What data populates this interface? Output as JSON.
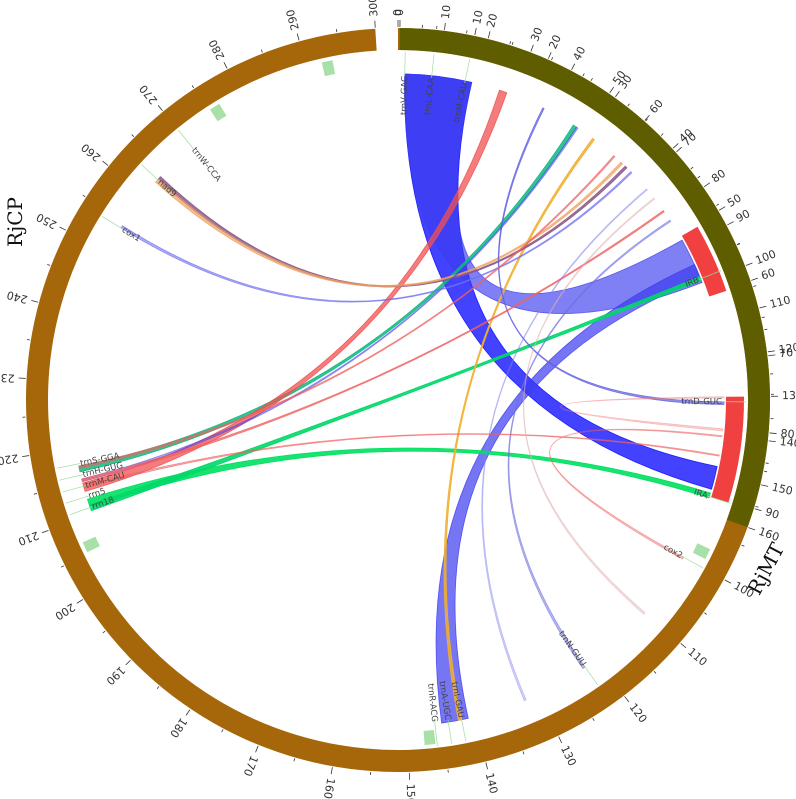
{
  "diagram": {
    "type": "circos",
    "genomes": [
      {
        "id": "RjMT",
        "label": "RjMT",
        "color": "#a5670a",
        "length": 300,
        "tick_step": 10
      },
      {
        "id": "RjCP",
        "label": "RjCP",
        "color": "#5e5e00",
        "length": 160,
        "tick_step": 10
      }
    ],
    "segments": [
      {
        "genome": "RjCP",
        "start": 87,
        "end": 104,
        "color": "#f04040",
        "label": ""
      },
      {
        "genome": "RjCP",
        "start": 130,
        "end": 156,
        "color": "#f04040",
        "label": ""
      }
    ],
    "gene_markers": [
      {
        "genome": "RjMT",
        "pos": 98,
        "color": "#a8e0a8"
      },
      {
        "genome": "RjMT",
        "pos": 147,
        "color": "#a8e0a8"
      },
      {
        "genome": "RjMT",
        "pos": 206,
        "color": "#a8e0a8"
      },
      {
        "genome": "RjMT",
        "pos": 293,
        "color": "#a8e0a8"
      },
      {
        "genome": "RjMT",
        "pos": 276,
        "color": "#a8e0a8"
      }
    ],
    "gene_labels": [
      {
        "text": "trnV-GAC",
        "genome": "RjMT",
        "pos": 1
      },
      {
        "text": "trnL-CAA",
        "genome": "RjMT",
        "pos": 5
      },
      {
        "text": "trnM-CAU",
        "genome": "RjMT",
        "pos": 10
      },
      {
        "text": "trnD-GUC",
        "genome": "RjMT",
        "pos": 76
      },
      {
        "text": "cox2",
        "genome": "RjMT",
        "pos": 100
      },
      {
        "text": "trnN-GUU",
        "genome": "RjMT",
        "pos": 122
      },
      {
        "text": "trnI-GAU",
        "genome": "RjMT",
        "pos": 142
      },
      {
        "text": "trnA-UGC",
        "genome": "RjMT",
        "pos": 144
      },
      {
        "text": "trnR-ACG",
        "genome": "RjMT",
        "pos": 146
      },
      {
        "text": "rrn18",
        "genome": "RjMT",
        "pos": 211
      },
      {
        "text": "rrn5",
        "genome": "RjMT",
        "pos": 212.7
      },
      {
        "text": "trnM-CAU",
        "genome": "RjMT",
        "pos": 214.3
      },
      {
        "text": "trnH-GUG",
        "genome": "RjMT",
        "pos": 216
      },
      {
        "text": "trnS-GGA",
        "genome": "RjMT",
        "pos": 217.7
      },
      {
        "text": "trnW-CCA",
        "genome": "RjMT",
        "pos": 270
      },
      {
        "text": "nad9",
        "genome": "RjMT",
        "pos": 263
      },
      {
        "text": "cox1",
        "genome": "RjMT",
        "pos": 254
      },
      {
        "text": "IRA",
        "genome": "RjCP",
        "pos": 156
      },
      {
        "text": "IRB",
        "genome": "RjCP",
        "pos": 99
      }
    ],
    "links": [
      {
        "a": [
          "RjCP",
          148,
          154
        ],
        "b": [
          "RjMT",
          1,
          11
        ],
        "color": "#1414ff",
        "opacity": 0.8
      },
      {
        "a": [
          "RjCP",
          88,
          100
        ],
        "b": [
          "RjMT",
          1,
          11
        ],
        "color": "#3c3cf0",
        "opacity": 0.65
      },
      {
        "a": [
          "RjCP",
          95,
          99
        ],
        "b": [
          "RjMT",
          141,
          145
        ],
        "color": "#3c3cf0",
        "opacity": 0.7
      },
      {
        "a": [
          "RjCP",
          155,
          156.3
        ],
        "b": [
          "RjMT",
          211,
          212.3
        ],
        "color": "#00e060",
        "opacity": 0.9
      },
      {
        "a": [
          "RjCP",
          98.4,
          99.4
        ],
        "b": [
          "RjMT",
          210.5,
          211.4
        ],
        "color": "#00d868",
        "opacity": 0.9
      },
      {
        "a": [
          "RjCP",
          47,
          48
        ],
        "b": [
          "RjMT",
          216.5,
          217.3
        ],
        "color": "#10b880",
        "opacity": 0.85
      },
      {
        "a": [
          "RjCP",
          26,
          28
        ],
        "b": [
          "RjMT",
          213.5,
          214.8
        ],
        "color": "#f05050",
        "opacity": 0.75
      },
      {
        "a": [
          "RjCP",
          53,
          53.6
        ],
        "b": [
          "RjMT",
          142,
          142.5
        ],
        "color": "#f0b030",
        "opacity": 0.85
      },
      {
        "a": [
          "RjCP",
          64,
          64.6
        ],
        "b": [
          "RjMT",
          263,
          263.6
        ],
        "color": "#8a5a8a",
        "opacity": 0.85
      },
      {
        "a": [
          "RjCP",
          62.5,
          63.1
        ],
        "b": [
          "RjMT",
          262.5,
          263.1
        ],
        "color": "#f0a060",
        "opacity": 0.7
      },
      {
        "a": [
          "RjCP",
          38,
          38.4
        ],
        "b": [
          "RjMT",
          76,
          76.4
        ],
        "color": "#6060e0",
        "opacity": 0.7
      },
      {
        "a": [
          "RjCP",
          82,
          82.4
        ],
        "b": [
          "RjMT",
          122,
          122.4
        ],
        "color": "#7070e0",
        "opacity": 0.5
      },
      {
        "a": [
          "RjCP",
          48,
          48.4
        ],
        "b": [
          "RjMT",
          215,
          215.4
        ],
        "color": "#4040f0",
        "opacity": 0.45
      },
      {
        "a": [
          "RjCP",
          66,
          66.4
        ],
        "b": [
          "RjMT",
          254,
          254.4
        ],
        "color": "#7070f0",
        "opacity": 0.6
      },
      {
        "a": [
          "RjCP",
          79,
          79.4
        ],
        "b": [
          "RjMT",
          215,
          215.4
        ],
        "color": "#f06060",
        "opacity": 0.7
      },
      {
        "a": [
          "RjCP",
          60,
          60.4
        ],
        "b": [
          "RjMT",
          217,
          217.4
        ],
        "color": "#f06060",
        "opacity": 0.6
      },
      {
        "a": [
          "RjCP",
          140,
          140.3
        ],
        "b": [
          "RjMT",
          100,
          100.3
        ],
        "color": "#f06060",
        "opacity": 0.4
      },
      {
        "a": [
          "RjCP",
          145,
          145.3
        ],
        "b": [
          "RjMT",
          214,
          214.3
        ],
        "color": "#f06060",
        "opacity": 0.5
      },
      {
        "a": [
          "RjCP",
          72,
          72.3
        ],
        "b": [
          "RjMT",
          132,
          132.3
        ],
        "color": "#8080f0",
        "opacity": 0.35
      },
      {
        "a": [
          "RjCP",
          130,
          130.3
        ],
        "b": [
          "RjMT",
          80,
          80.3
        ],
        "color": "#f08080",
        "opacity": 0.35
      },
      {
        "a": [
          "RjCP",
          75,
          75.3
        ],
        "b": [
          "RjMT",
          110,
          110.3
        ],
        "color": "#e0b0b0",
        "opacity": 0.4
      }
    ]
  }
}
